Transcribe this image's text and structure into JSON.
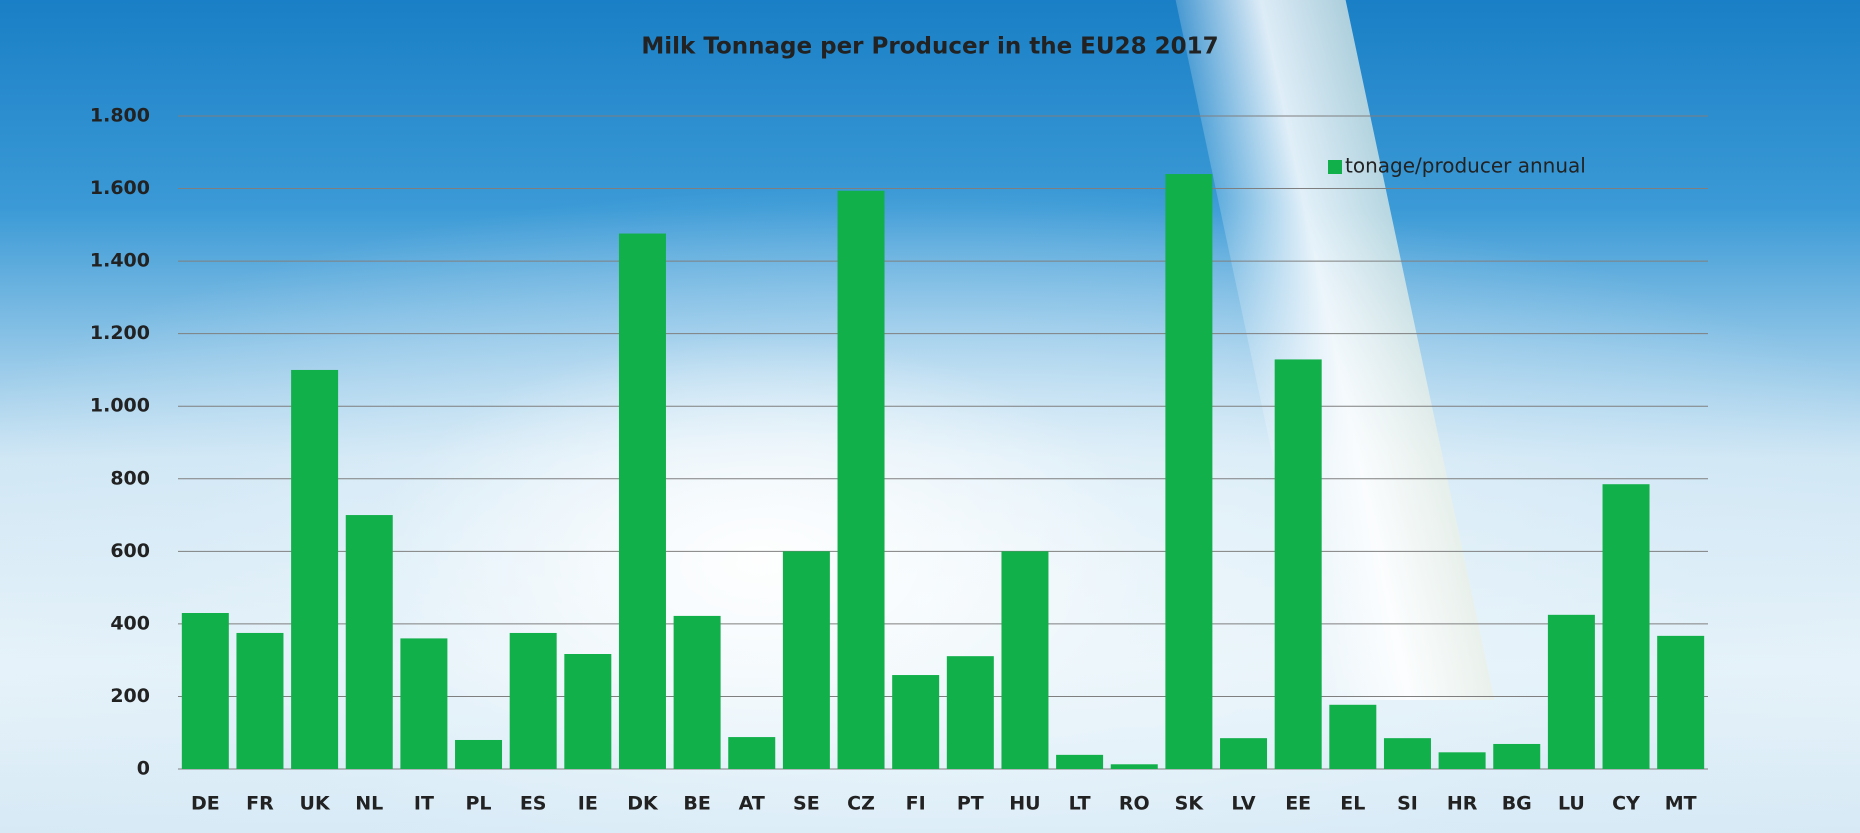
{
  "chart_data": {
    "type": "bar",
    "title": "Milk Tonnage per Producer in the EU28 2017",
    "categories": [
      "DE",
      "FR",
      "UK",
      "NL",
      "IT",
      "PL",
      "ES",
      "IE",
      "DK",
      "BE",
      "AT",
      "SE",
      "CZ",
      "FI",
      "PT",
      "HU",
      "LT",
      "RO",
      "SK",
      "LV",
      "EE",
      "EL",
      "SI",
      "HR",
      "BG",
      "LU",
      "CY",
      "MT"
    ],
    "series": [
      {
        "name": "tonage/producer annual",
        "color": "#12b04a",
        "values": [
          430,
          375,
          1100,
          700,
          360,
          80,
          375,
          317,
          1476,
          422,
          88,
          600,
          1594,
          259,
          311,
          600,
          39,
          13,
          1640,
          85,
          1129,
          177,
          85,
          46,
          69,
          425,
          785,
          367
        ]
      }
    ],
    "ylim": [
      0,
      1800
    ],
    "yticks": [
      0,
      200,
      400,
      600,
      800,
      {
        "value": 1000,
        "label": "1.000"
      },
      {
        "value": 1200,
        "label": "1.200"
      },
      {
        "value": 1400,
        "label": "1.400"
      },
      {
        "value": 1600,
        "label": "1.600"
      },
      {
        "value": 1800,
        "label": "1.800"
      }
    ],
    "grid": true,
    "legend": "top-right"
  }
}
